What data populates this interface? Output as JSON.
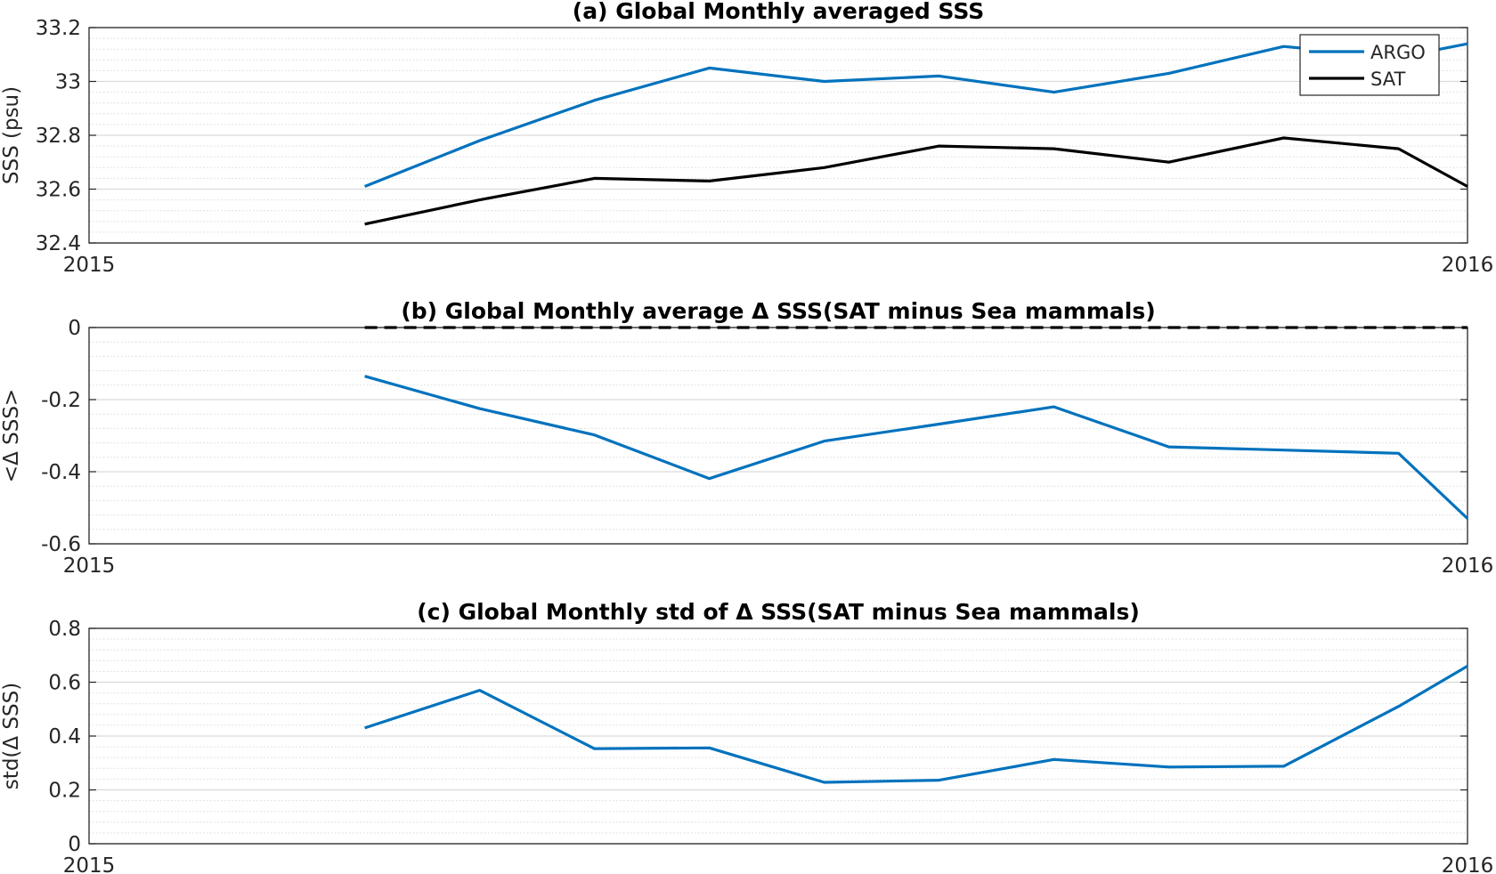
{
  "chart_data": [
    {
      "type": "line",
      "title": "(a) Global Monthly averaged SSS",
      "ylabel": "SSS (psu)",
      "xlabel": "",
      "xlim": [
        0,
        12
      ],
      "ylim": [
        32.4,
        33.2
      ],
      "x_tick_labels": [
        "2015",
        "2016"
      ],
      "y_ticks": [
        32.4,
        32.6,
        32.8,
        33,
        33.2
      ],
      "y_tick_labels": [
        "32.4",
        "32.6",
        "32.8",
        "33",
        "33.2"
      ],
      "grid": true,
      "legend": "top-right",
      "x": [
        2.4,
        3.4,
        4.4,
        5.4,
        6.4,
        7.4,
        8.4,
        9.4,
        10.4,
        11.4,
        12.0
      ],
      "series": [
        {
          "name": "ARGO",
          "color": "#0072bd",
          "values": [
            32.61,
            32.78,
            32.93,
            33.05,
            33.0,
            33.02,
            32.96,
            33.03,
            33.13,
            33.09,
            33.14
          ]
        },
        {
          "name": "SAT",
          "color": "#000000",
          "values": [
            32.47,
            32.56,
            32.64,
            32.63,
            32.68,
            32.76,
            32.75,
            32.7,
            32.79,
            32.75,
            32.61
          ]
        }
      ]
    },
    {
      "type": "line",
      "title": "(b) Global Monthly average Δ SSS(SAT minus Sea mammals)",
      "ylabel": "<Δ SSS>",
      "xlabel": "",
      "xlim": [
        0,
        12
      ],
      "ylim": [
        -0.6,
        0
      ],
      "x_tick_labels": [
        "2015",
        "2016"
      ],
      "y_ticks": [
        -0.6,
        -0.4,
        -0.2,
        0
      ],
      "y_tick_labels": [
        "-0.6",
        "-0.4",
        "-0.2",
        "0"
      ],
      "grid": true,
      "x": [
        2.4,
        3.4,
        4.4,
        5.4,
        6.4,
        7.4,
        8.4,
        9.4,
        10.4,
        11.4,
        12.0
      ],
      "series": [
        {
          "color": "#0072bd",
          "values": [
            -0.135,
            -0.225,
            -0.298,
            -0.419,
            -0.315,
            -0.268,
            -0.22,
            -0.331,
            -0.34,
            -0.349,
            -0.53
          ]
        }
      ],
      "reference_line": {
        "y": 0,
        "color": "#000000",
        "style": "dashed",
        "x_range": [
          2.4,
          12.0
        ]
      }
    },
    {
      "type": "line",
      "title": "(c) Global Monthly std of Δ SSS(SAT minus Sea mammals)",
      "ylabel": "std(Δ SSS)",
      "xlabel": "",
      "xlim": [
        0,
        12
      ],
      "ylim": [
        0,
        0.8
      ],
      "x_tick_labels": [
        "2015",
        "2016"
      ],
      "y_ticks": [
        0,
        0.2,
        0.4,
        0.6,
        0.8
      ],
      "y_tick_labels": [
        "0",
        "0.2",
        "0.4",
        "0.6",
        "0.8"
      ],
      "grid": true,
      "x": [
        2.4,
        3.4,
        4.4,
        5.4,
        6.4,
        7.4,
        8.4,
        9.4,
        10.4,
        11.4,
        12.0
      ],
      "series": [
        {
          "color": "#0072bd",
          "values": [
            0.43,
            0.57,
            0.353,
            0.356,
            0.228,
            0.236,
            0.313,
            0.285,
            0.288,
            0.51,
            0.66
          ]
        }
      ]
    }
  ]
}
